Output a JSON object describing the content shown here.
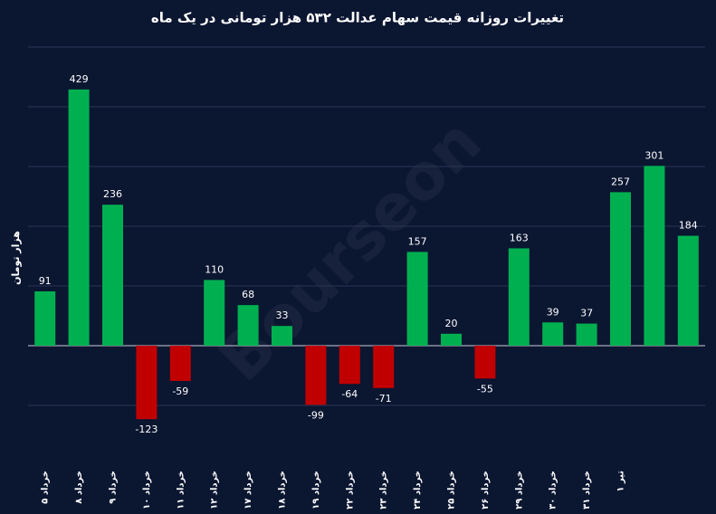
{
  "chart_data": {
    "type": "bar",
    "title": "تغییرات روزانه قیمت سهام عدالت ۵۳۲ هزار تومانی در یک ماه",
    "y_label": "هزار تومان",
    "watermark": "Bourseon",
    "categories": [
      "۵ خرداد",
      "۸ خرداد",
      "۹ خرداد",
      "۱۰ خرداد",
      "۱۱ خرداد",
      "۱۲ خرداد",
      "۱۷ خرداد",
      "۱۸ خرداد",
      "۱۹ خرداد",
      "۲۲ خرداد",
      "۲۳ خرداد",
      "۲۴ خرداد",
      "۲۵ خرداد",
      "۲۶ خرداد",
      "۲۹ خرداد",
      "۳۰ خرداد",
      "۳۱ خرداد",
      "۱ تیر",
      null,
      null
    ],
    "values": [
      91,
      429,
      236,
      -123,
      -59,
      110,
      68,
      33,
      -99,
      -64,
      -71,
      157,
      20,
      -55,
      163,
      39,
      37,
      257,
      301,
      184
    ],
    "positive_color": "#00b050",
    "negative_color": "#c00000",
    "ylim": [
      -200,
      500
    ],
    "gridlines": [
      -100,
      0,
      100,
      200,
      300,
      400,
      500
    ],
    "grid": true
  }
}
